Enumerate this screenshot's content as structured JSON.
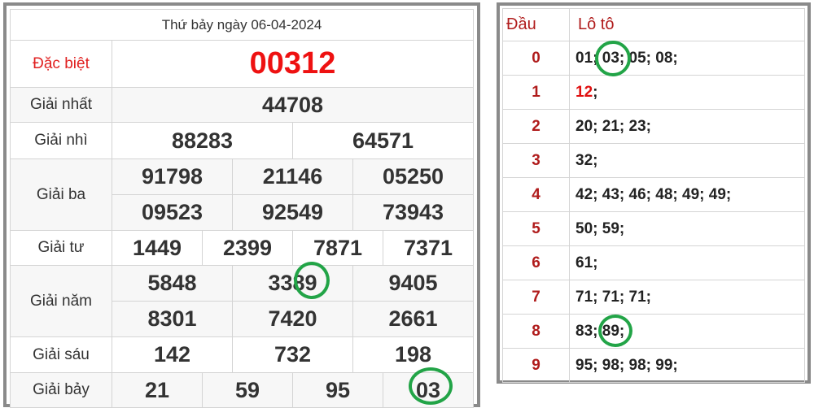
{
  "results": {
    "date_title": "Thứ bảy ngày 06-04-2024",
    "special": {
      "label": "Đặc biệt",
      "numbers": [
        "00312"
      ]
    },
    "first": {
      "label": "Giải nhất",
      "numbers": [
        "44708"
      ]
    },
    "second": {
      "label": "Giải nhì",
      "numbers": [
        "88283",
        "64571"
      ]
    },
    "third": {
      "label": "Giải ba",
      "numbers": [
        "91798",
        "21146",
        "05250",
        "09523",
        "92549",
        "73943"
      ]
    },
    "fourth": {
      "label": "Giải tư",
      "numbers": [
        "1449",
        "2399",
        "7871",
        "7371"
      ]
    },
    "fifth": {
      "label": "Giải năm",
      "numbers": [
        "5848",
        "3389",
        "9405",
        "8301",
        "7420",
        "2661"
      ]
    },
    "sixth": {
      "label": "Giải sáu",
      "numbers": [
        "142",
        "732",
        "198"
      ]
    },
    "seventh": {
      "label": "Giải bảy",
      "numbers": [
        "21",
        "59",
        "95",
        "03"
      ]
    }
  },
  "loto": {
    "head_label": "Đầu",
    "loto_label": "Lô tô",
    "rows": [
      {
        "head": "0",
        "items": [
          "01",
          "03",
          "05",
          "08"
        ]
      },
      {
        "head": "1",
        "items": [
          "12"
        ],
        "special": "12"
      },
      {
        "head": "2",
        "items": [
          "20",
          "21",
          "23"
        ]
      },
      {
        "head": "3",
        "items": [
          "32"
        ]
      },
      {
        "head": "4",
        "items": [
          "42",
          "43",
          "46",
          "48",
          "49",
          "49"
        ]
      },
      {
        "head": "5",
        "items": [
          "50",
          "59"
        ]
      },
      {
        "head": "6",
        "items": [
          "61"
        ]
      },
      {
        "head": "7",
        "items": [
          "71",
          "71",
          "71"
        ]
      },
      {
        "head": "8",
        "items": [
          "83",
          "89"
        ]
      },
      {
        "head": "9",
        "items": [
          "95",
          "98",
          "98",
          "99"
        ]
      }
    ]
  },
  "colors": {
    "special": "#ee1111",
    "heading": "#b01c1c",
    "highlight_circle": "#22a447",
    "border": "#8a8a8a"
  }
}
